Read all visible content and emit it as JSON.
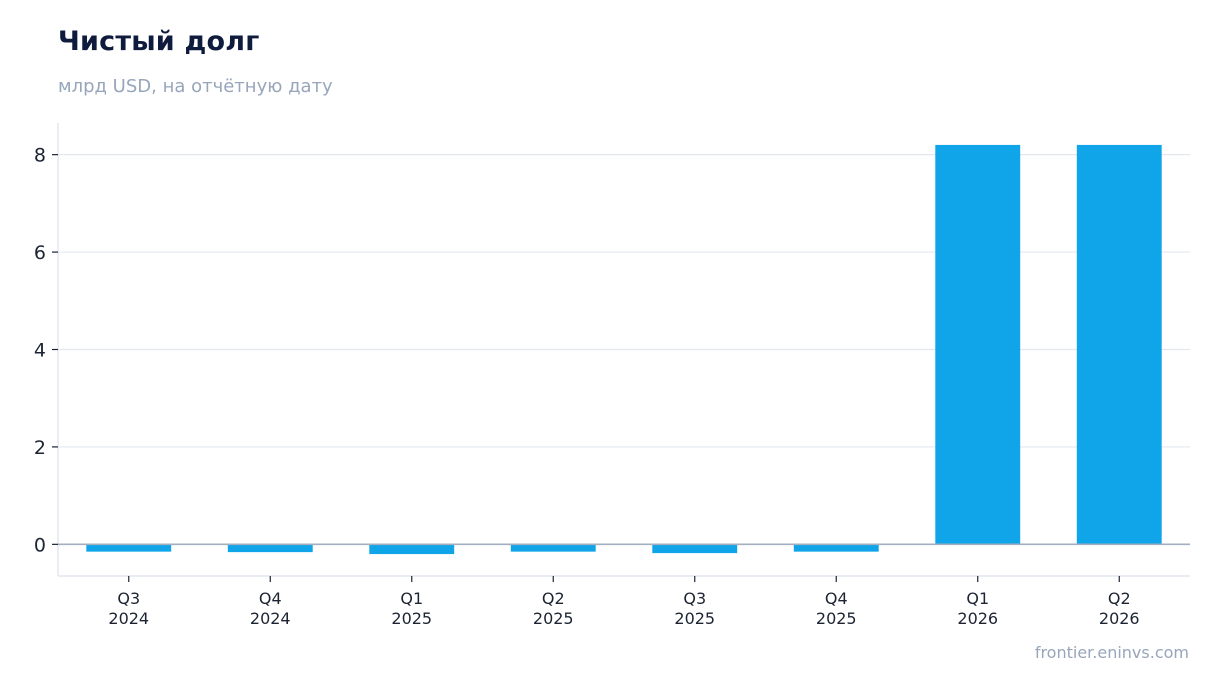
{
  "header": {
    "title": "Чистый долг",
    "subtitle": "млрд USD, на отчётную дату"
  },
  "footer": {
    "source": "frontier.eninvs.com"
  },
  "colors": {
    "bar": "#10a5e8",
    "grid": "#e3e8f0",
    "axis": "#e3e8f0",
    "zero_line": "#a3afc0",
    "text": "#1c2433",
    "title": "#0f1b3d",
    "muted": "#97a6bb"
  },
  "chart_data": {
    "type": "bar",
    "title": "Чистый долг",
    "subtitle": "млрд USD, на отчётную дату",
    "xlabel": "",
    "ylabel": "",
    "categories": [
      [
        "Q3",
        "2024"
      ],
      [
        "Q4",
        "2024"
      ],
      [
        "Q1",
        "2025"
      ],
      [
        "Q2",
        "2025"
      ],
      [
        "Q3",
        "2025"
      ],
      [
        "Q4",
        "2025"
      ],
      [
        "Q1",
        "2026"
      ],
      [
        "Q2",
        "2026"
      ]
    ],
    "values": [
      -0.15,
      -0.16,
      -0.2,
      -0.15,
      -0.18,
      -0.15,
      8.2,
      8.2
    ],
    "yticks": [
      0,
      2,
      4,
      6,
      8
    ],
    "ylim": [
      -0.65,
      8.65
    ],
    "grid": true,
    "legend": "none"
  }
}
